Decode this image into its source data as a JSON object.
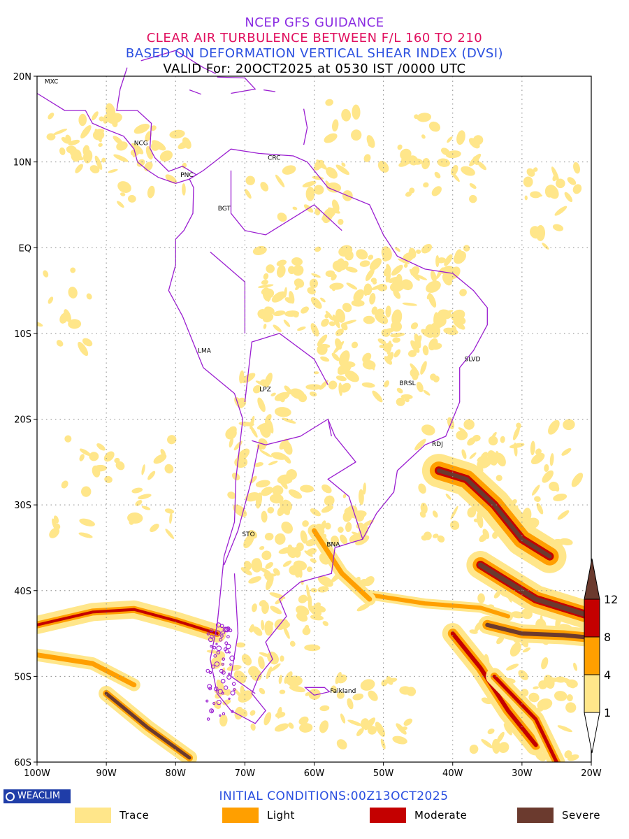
{
  "titles": {
    "line1": "NCEP GFS GUIDANCE",
    "line2": "CLEAR AIR TURBULENCE BETWEEN F/L 160 TO 210",
    "line3": "BASED ON DEFORMATION VERTICAL SHEAR INDEX (DVSI)",
    "line4": "VALID For: 20OCT2025 at 0530 IST /0000 UTC"
  },
  "title_colors": {
    "line1": "#8a2be2",
    "line2": "#e0105f",
    "line3": "#2a4fe0",
    "line4": "#000000"
  },
  "map": {
    "lon_range": [
      -100,
      -20
    ],
    "lat_range": [
      -60,
      20
    ],
    "lat_ticks": [
      {
        "value": 20,
        "label": "20N"
      },
      {
        "value": 10,
        "label": "10N"
      },
      {
        "value": 0,
        "label": "EQ"
      },
      {
        "value": -10,
        "label": "10S"
      },
      {
        "value": -20,
        "label": "20S"
      },
      {
        "value": -30,
        "label": "30S"
      },
      {
        "value": -40,
        "label": "40S"
      },
      {
        "value": -50,
        "label": "50S"
      },
      {
        "value": -60,
        "label": "60S"
      }
    ],
    "lon_ticks": [
      {
        "value": -100,
        "label": "100W"
      },
      {
        "value": -90,
        "label": "90W"
      },
      {
        "value": -80,
        "label": "80W"
      },
      {
        "value": -70,
        "label": "70W"
      },
      {
        "value": -60,
        "label": "60W"
      },
      {
        "value": -50,
        "label": "50W"
      },
      {
        "value": -40,
        "label": "40W"
      },
      {
        "value": -30,
        "label": "30W"
      },
      {
        "value": -20,
        "label": "20W"
      }
    ],
    "grid": "dotted",
    "coastline_color": "#9b1fd1",
    "stations": [
      {
        "code": "MXC",
        "lon": -99.1,
        "lat": 19.4
      },
      {
        "code": "NCG",
        "lon": -86.2,
        "lat": 12.2
      },
      {
        "code": "PNC",
        "lon": -79.5,
        "lat": 8.5
      },
      {
        "code": "CRC",
        "lon": -66.9,
        "lat": 10.5
      },
      {
        "code": "BGT",
        "lon": -74.1,
        "lat": 4.6
      },
      {
        "code": "LMA",
        "lon": -77.0,
        "lat": -12.0
      },
      {
        "code": "LPZ",
        "lon": -68.1,
        "lat": -16.5
      },
      {
        "code": "BRSL",
        "lon": -47.9,
        "lat": -15.8
      },
      {
        "code": "SLVD",
        "lon": -38.5,
        "lat": -13.0
      },
      {
        "code": "RDJ",
        "lon": -43.2,
        "lat": -22.9
      },
      {
        "code": "STO",
        "lon": -70.6,
        "lat": -33.4
      },
      {
        "code": "BNA",
        "lon": -58.4,
        "lat": -34.6
      },
      {
        "code": "Falkland",
        "lon": -57.9,
        "lat": -51.7
      }
    ]
  },
  "colorbar": {
    "levels": [
      "12",
      "8",
      "4",
      "1"
    ],
    "colors": [
      "#6b3a2e",
      "#c40000",
      "#ff9f00",
      "#ffe68a",
      "#ffffff"
    ]
  },
  "initial_conditions": "INITIAL CONDITIONS:00Z13OCT2025",
  "initial_color": "#2a4fe0",
  "logo": "WEACLIM",
  "legend": [
    {
      "label": "Trace",
      "color": "#ffe68a"
    },
    {
      "label": "Light",
      "color": "#ff9f00"
    },
    {
      "label": "Moderate",
      "color": "#c40000"
    },
    {
      "label": "Severe",
      "color": "#6b3a2e"
    }
  ]
}
